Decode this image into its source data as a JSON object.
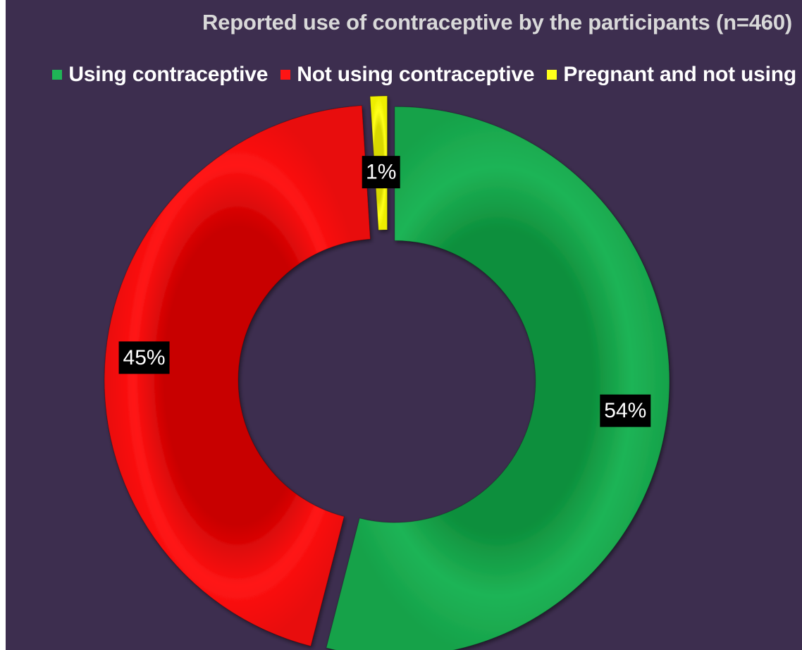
{
  "chart_data": {
    "type": "pie",
    "variant": "donut",
    "title": "Reported use of contraceptive by the participants (n=460)",
    "legend_position": "top",
    "series": [
      {
        "name": "Using contraceptive",
        "value": 54,
        "label": "54%",
        "color": "#1fb456"
      },
      {
        "name": "Not using contraceptive",
        "value": 45,
        "label": "45%",
        "color": "#ff1414"
      },
      {
        "name": "Pregnant and not using",
        "value": 1,
        "label": "1%",
        "color": "#ffff1a"
      }
    ]
  }
}
